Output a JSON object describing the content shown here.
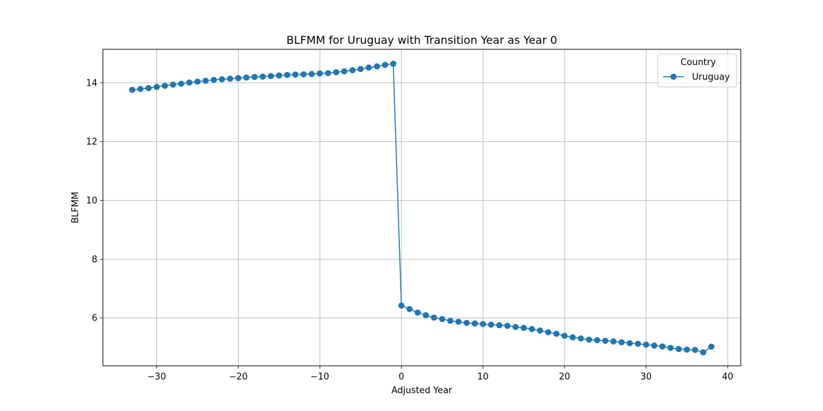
{
  "chart_data": {
    "type": "line",
    "title": "BLFMM for Uruguay with Transition Year as Year 0",
    "xlabel": "Adjusted Year",
    "ylabel": "BLFMM",
    "xlim": [
      -36.6,
      41.6
    ],
    "ylim": [
      4.37,
      15.14
    ],
    "xticks": [
      -30,
      -20,
      -10,
      0,
      10,
      20,
      30,
      40
    ],
    "xtick_labels": [
      "−30",
      "−20",
      "−10",
      "0",
      "10",
      "20",
      "30",
      "40"
    ],
    "yticks": [
      6,
      8,
      10,
      12,
      14
    ],
    "ytick_labels": [
      "6",
      "8",
      "10",
      "12",
      "14"
    ],
    "grid": true,
    "legend": {
      "title": "Country",
      "placement": "top-right"
    },
    "series": [
      {
        "name": "Uruguay",
        "color": "#1f77b4",
        "marker": "circle",
        "x": [
          -33,
          -32,
          -31,
          -30,
          -29,
          -28,
          -27,
          -26,
          -25,
          -24,
          -23,
          -22,
          -21,
          -20,
          -19,
          -18,
          -17,
          -16,
          -15,
          -14,
          -13,
          -12,
          -11,
          -10,
          -9,
          -8,
          -7,
          -6,
          -5,
          -4,
          -3,
          -2,
          -1,
          0,
          1,
          2,
          3,
          4,
          5,
          6,
          7,
          8,
          9,
          10,
          11,
          12,
          13,
          14,
          15,
          16,
          17,
          18,
          19,
          20,
          21,
          22,
          23,
          24,
          25,
          26,
          27,
          28,
          29,
          30,
          31,
          32,
          33,
          34,
          35,
          36,
          37,
          38
        ],
        "y": [
          13.76,
          13.79,
          13.82,
          13.86,
          13.9,
          13.94,
          13.97,
          14.01,
          14.04,
          14.07,
          14.1,
          14.12,
          14.14,
          14.16,
          14.18,
          14.2,
          14.21,
          14.23,
          14.25,
          14.27,
          14.28,
          14.29,
          14.3,
          14.32,
          14.33,
          14.36,
          14.39,
          14.43,
          14.47,
          14.52,
          14.56,
          14.61,
          14.65,
          6.42,
          6.3,
          6.18,
          6.09,
          6.01,
          5.96,
          5.9,
          5.87,
          5.83,
          5.81,
          5.79,
          5.77,
          5.75,
          5.73,
          5.69,
          5.66,
          5.62,
          5.57,
          5.51,
          5.46,
          5.39,
          5.34,
          5.3,
          5.26,
          5.24,
          5.22,
          5.2,
          5.17,
          5.14,
          5.12,
          5.09,
          5.06,
          5.03,
          4.98,
          4.94,
          4.92,
          4.91,
          4.83,
          5.02
        ]
      }
    ]
  }
}
